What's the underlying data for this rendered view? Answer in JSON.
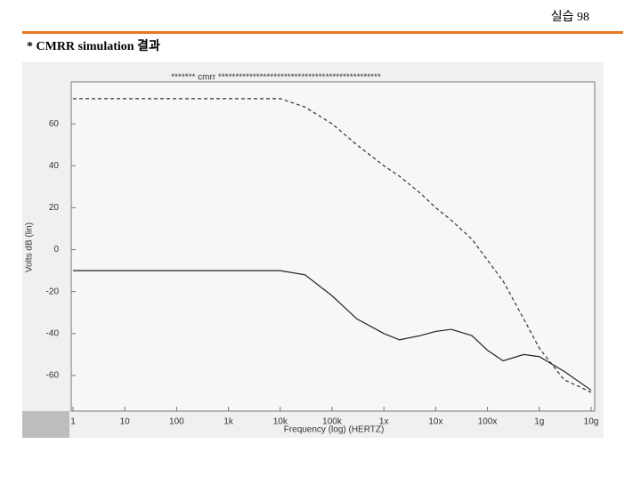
{
  "slide": {
    "page": "실습  98",
    "heading": "* CMRR  simulation 결과"
  },
  "chart_data": {
    "type": "line",
    "title": "******* cmrr ***********************************************",
    "x_label": "Frequency (log) (HERTZ)",
    "y_label": "Volts dB (lin)",
    "x": [
      1,
      10,
      100,
      1000,
      10000,
      30000,
      100000,
      300000,
      1000000,
      2000000,
      5000000,
      10000000,
      20000000,
      50000000,
      100000000,
      200000000,
      500000000,
      1000000000,
      3000000000,
      10000000000
    ],
    "series": [
      {
        "color": "#333333",
        "linestyle": "dashed",
        "values": [
          72,
          72,
          72,
          72,
          72,
          68,
          60,
          50,
          40,
          35,
          27,
          20,
          14,
          5,
          -5,
          -15,
          -33,
          -47,
          -62,
          -68
        ]
      },
      {
        "color": "#222222",
        "linestyle": "solid",
        "values": [
          -10,
          -10,
          -10,
          -10,
          -10,
          -12,
          -22,
          -33,
          -40,
          -43,
          -41,
          -39,
          -38,
          -41,
          -48,
          -53,
          -50,
          -51,
          -58,
          -67
        ]
      }
    ],
    "xscale": "log",
    "xlim": [
      1,
      10000000000
    ],
    "xticks": [
      1,
      10,
      100,
      {
        "value": 1000,
        "label": "1k"
      },
      {
        "value": 10000,
        "label": "10k"
      },
      {
        "value": 100000,
        "label": "100k"
      },
      {
        "value": 1000000,
        "label": "1x"
      },
      {
        "value": 10000000,
        "label": "10x"
      },
      {
        "value": 100000000,
        "label": "100x"
      },
      {
        "value": 1000000000,
        "label": "1g"
      },
      {
        "value": 10000000000,
        "label": "10g"
      }
    ],
    "ylim": [
      -77,
      80
    ],
    "yticks": [
      -60,
      -40,
      -20,
      0,
      20,
      40,
      60
    ],
    "grid": false
  }
}
